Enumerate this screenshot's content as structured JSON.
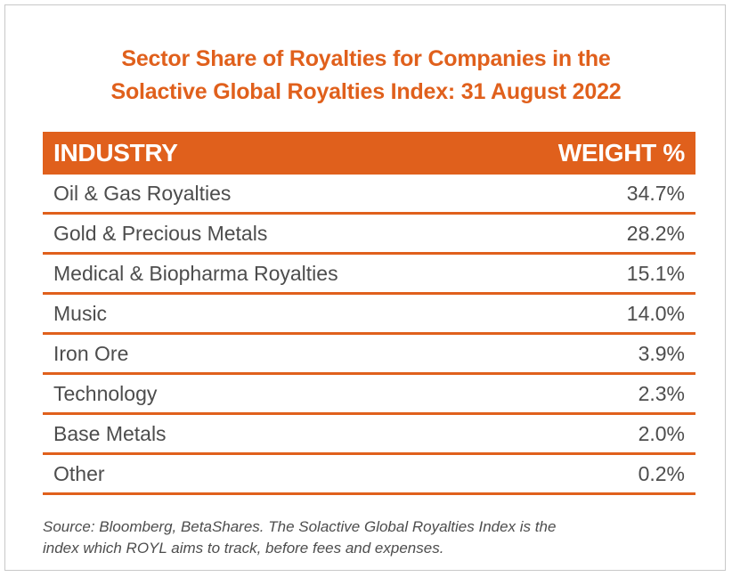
{
  "title": {
    "line1": "Sector Share of Royalties for Companies in the",
    "line2": "Solactive Global Royalties Index: 31 August 2022"
  },
  "chart_data": {
    "type": "table",
    "columns": [
      "INDUSTRY",
      "WEIGHT %"
    ],
    "rows": [
      {
        "industry": "Oil & Gas Royalties",
        "weight": "34.7%"
      },
      {
        "industry": "Gold & Precious Metals",
        "weight": "28.2%"
      },
      {
        "industry": "Medical & Biopharma Royalties",
        "weight": "15.1%"
      },
      {
        "industry": "Music",
        "weight": "14.0%"
      },
      {
        "industry": "Iron Ore",
        "weight": "3.9%"
      },
      {
        "industry": "Technology",
        "weight": "2.3%"
      },
      {
        "industry": "Base Metals",
        "weight": "2.0%"
      },
      {
        "industry": "Other",
        "weight": "0.2%"
      }
    ]
  },
  "source": {
    "line1": "Source: Bloomberg, BetaShares. The Solactive Global Royalties Index is the",
    "line2": "index which ROYL aims to track, before fees and expenses."
  },
  "colors": {
    "accent": "#e0601c",
    "text": "#4d4d4d"
  }
}
